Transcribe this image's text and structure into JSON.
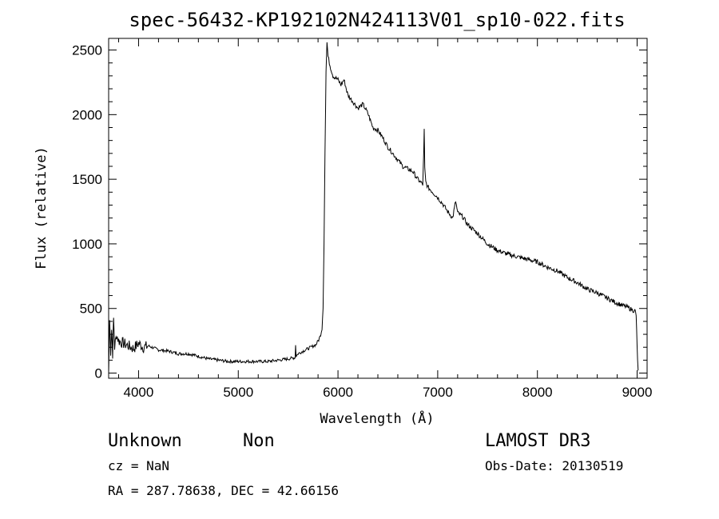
{
  "chart_data": {
    "type": "line",
    "title": "spec-56432-KP192102N424113V01_sp10-022.fits",
    "xlabel": "Wavelength (Å)",
    "ylabel": "Flux (relative)",
    "xlim": [
      3700,
      9100
    ],
    "ylim": [
      -40,
      2590
    ],
    "x_ticks": [
      4000,
      5000,
      6000,
      7000,
      8000,
      9000
    ],
    "y_ticks": [
      0,
      500,
      1000,
      1500,
      2000,
      2500
    ],
    "x_tick_labels": [
      "4000",
      "5000",
      "6000",
      "7000",
      "8000",
      "9000"
    ],
    "y_tick_labels": [
      "0",
      "500",
      "1000",
      "1500",
      "2000",
      "2500"
    ],
    "grid": false,
    "series": [
      {
        "x": [
          3700,
          3710,
          3720,
          3730,
          3740,
          3750,
          3760,
          3780,
          3800,
          3850,
          3900,
          3950,
          4000,
          4050,
          4100,
          4200,
          4300,
          4400,
          4500,
          4600,
          4700,
          4800,
          4900,
          5000,
          5100,
          5200,
          5300,
          5400,
          5500,
          5570,
          5575,
          5580,
          5600,
          5700,
          5780,
          5800,
          5820,
          5840,
          5850,
          5860,
          5870,
          5880,
          5890,
          5900,
          5920,
          5950,
          6000,
          6030,
          6060,
          6100,
          6150,
          6200,
          6250,
          6300,
          6350,
          6400,
          6450,
          6500,
          6550,
          6600,
          6650,
          6700,
          6750,
          6800,
          6850,
          6860,
          6865,
          6870,
          6880,
          6900,
          6950,
          7000,
          7050,
          7100,
          7150,
          7180,
          7200,
          7250,
          7300,
          7400,
          7500,
          7600,
          7700,
          7800,
          7900,
          8000,
          8100,
          8200,
          8300,
          8400,
          8500,
          8600,
          8700,
          8800,
          8900,
          8950,
          8980,
          8990,
          9000,
          9010
        ],
        "y": [
          0,
          410,
          170,
          340,
          150,
          420,
          200,
          300,
          250,
          230,
          210,
          190,
          230,
          200,
          210,
          180,
          170,
          150,
          150,
          130,
          110,
          100,
          90,
          90,
          90,
          90,
          90,
          100,
          110,
          120,
          220,
          130,
          150,
          190,
          220,
          250,
          280,
          350,
          500,
          1000,
          1700,
          2350,
          2560,
          2450,
          2380,
          2300,
          2270,
          2230,
          2270,
          2150,
          2100,
          2050,
          2080,
          2010,
          1900,
          1880,
          1820,
          1750,
          1700,
          1650,
          1600,
          1580,
          1560,
          1500,
          1460,
          1700,
          1890,
          1580,
          1480,
          1440,
          1400,
          1360,
          1310,
          1250,
          1200,
          1330,
          1240,
          1210,
          1150,
          1080,
          1000,
          950,
          920,
          900,
          880,
          860,
          820,
          790,
          740,
          700,
          650,
          620,
          580,
          540,
          510,
          490,
          480,
          450,
          200,
          20
        ]
      }
    ]
  },
  "meta": {
    "object_class": "Unknown",
    "subclass": "Non",
    "survey": "LAMOST DR3",
    "cz": "cz = NaN",
    "obs_date": "Obs-Date: 20130519",
    "coords": "RA = 287.78638, DEC =  42.66156"
  }
}
